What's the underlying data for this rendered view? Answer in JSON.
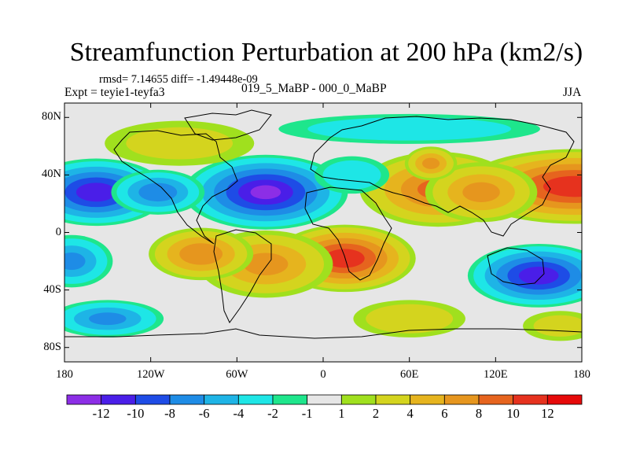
{
  "title": "Streamfunction Perturbation at 200 hPa (km2/s)",
  "stats": "rmsd= 7.14655 diff= -1.49448e-09",
  "experiment": "Expt = teyie1-teyfa3",
  "period": "019_5_MaBP - 000_0_MaBP",
  "season": "JJA",
  "map": {
    "projection": "cylindrical-equidistant",
    "lon_range": [
      -180,
      180
    ],
    "lat_range": [
      -90,
      90
    ],
    "y_ticks": [
      {
        "lat": 80,
        "label": "80N"
      },
      {
        "lat": 40,
        "label": "40N"
      },
      {
        "lat": 0,
        "label": "0"
      },
      {
        "lat": -40,
        "label": "40S"
      },
      {
        "lat": -80,
        "label": "80S"
      }
    ],
    "x_ticks": [
      {
        "lon": -180,
        "label": "180"
      },
      {
        "lon": -120,
        "label": "120W"
      },
      {
        "lon": -60,
        "label": "60W"
      },
      {
        "lon": 0,
        "label": "0"
      },
      {
        "lon": 60,
        "label": "60E"
      },
      {
        "lon": 120,
        "label": "120E"
      },
      {
        "lon": 180,
        "label": "180"
      }
    ],
    "features": [
      {
        "label": "",
        "lon": 175,
        "lat": 32,
        "rx": 60,
        "ry": 20,
        "value": 11
      },
      {
        "label": "",
        "lon": 80,
        "lat": 30,
        "rx": 42,
        "ry": 20,
        "value": 8
      },
      {
        "label": "",
        "lon": 110,
        "lat": 28,
        "rx": 30,
        "ry": 16,
        "value": 6
      },
      {
        "label": "",
        "lon": 75,
        "lat": 48,
        "rx": 14,
        "ry": 9,
        "value": 6
      },
      {
        "label": "",
        "lon": -180,
        "lat": 28,
        "rx": 22,
        "ry": 14,
        "value": 9
      },
      {
        "label": "",
        "lon": 15,
        "lat": -18,
        "rx": 38,
        "ry": 18,
        "value": 11
      },
      {
        "label": "",
        "lon": -40,
        "lat": -22,
        "rx": 36,
        "ry": 18,
        "value": 6
      },
      {
        "label": "",
        "lon": -85,
        "lat": -15,
        "rx": 28,
        "ry": 14,
        "value": 7
      },
      {
        "label": "",
        "lon": 60,
        "lat": -60,
        "rx": 30,
        "ry": 10,
        "value": 3
      },
      {
        "label": "",
        "lon": -158,
        "lat": 28,
        "rx": 38,
        "ry": 18,
        "value": -11
      },
      {
        "label": "",
        "lon": -40,
        "lat": 28,
        "rx": 44,
        "ry": 20,
        "value": -12
      },
      {
        "label": "",
        "lon": -115,
        "lat": 28,
        "rx": 25,
        "ry": 12,
        "value": -7
      },
      {
        "label": "",
        "lon": 150,
        "lat": -30,
        "rx": 38,
        "ry": 17,
        "value": -11
      },
      {
        "label": "",
        "lon": -175,
        "lat": -20,
        "rx": 22,
        "ry": 14,
        "value": -6
      },
      {
        "label": "",
        "lon": -150,
        "lat": -60,
        "rx": 30,
        "ry": 10,
        "value": -6
      },
      {
        "label": "",
        "lon": 20,
        "lat": 40,
        "rx": 20,
        "ry": 10,
        "value": -3
      },
      {
        "label": "",
        "lon": -100,
        "lat": 62,
        "rx": 40,
        "ry": 12,
        "value": 2
      },
      {
        "label": "",
        "lon": 60,
        "lat": 72,
        "rx": 70,
        "ry": 8,
        "value": -3
      },
      {
        "label": "",
        "lon": 165,
        "lat": -65,
        "rx": 20,
        "ry": 8,
        "value": 2
      }
    ]
  },
  "colorbar": {
    "colors": [
      "#8c2ee6",
      "#4a1ee8",
      "#1e4ce6",
      "#1e8ce6",
      "#1eb4e6",
      "#1ee6e6",
      "#1ee68c",
      "#e6e6e6",
      "#a0e01e",
      "#d4d41e",
      "#e6b41e",
      "#e6961e",
      "#e6641e",
      "#e6321e",
      "#e60a0a"
    ],
    "levels": [
      -12,
      -10,
      -8,
      -6,
      -4,
      -2,
      -1,
      1,
      2,
      4,
      6,
      8,
      10,
      12
    ],
    "labels": [
      "-12",
      "-10",
      "-8",
      "-6",
      "-4",
      "-2",
      "-1",
      "1",
      "2",
      "4",
      "6",
      "8",
      "10",
      "12"
    ]
  }
}
